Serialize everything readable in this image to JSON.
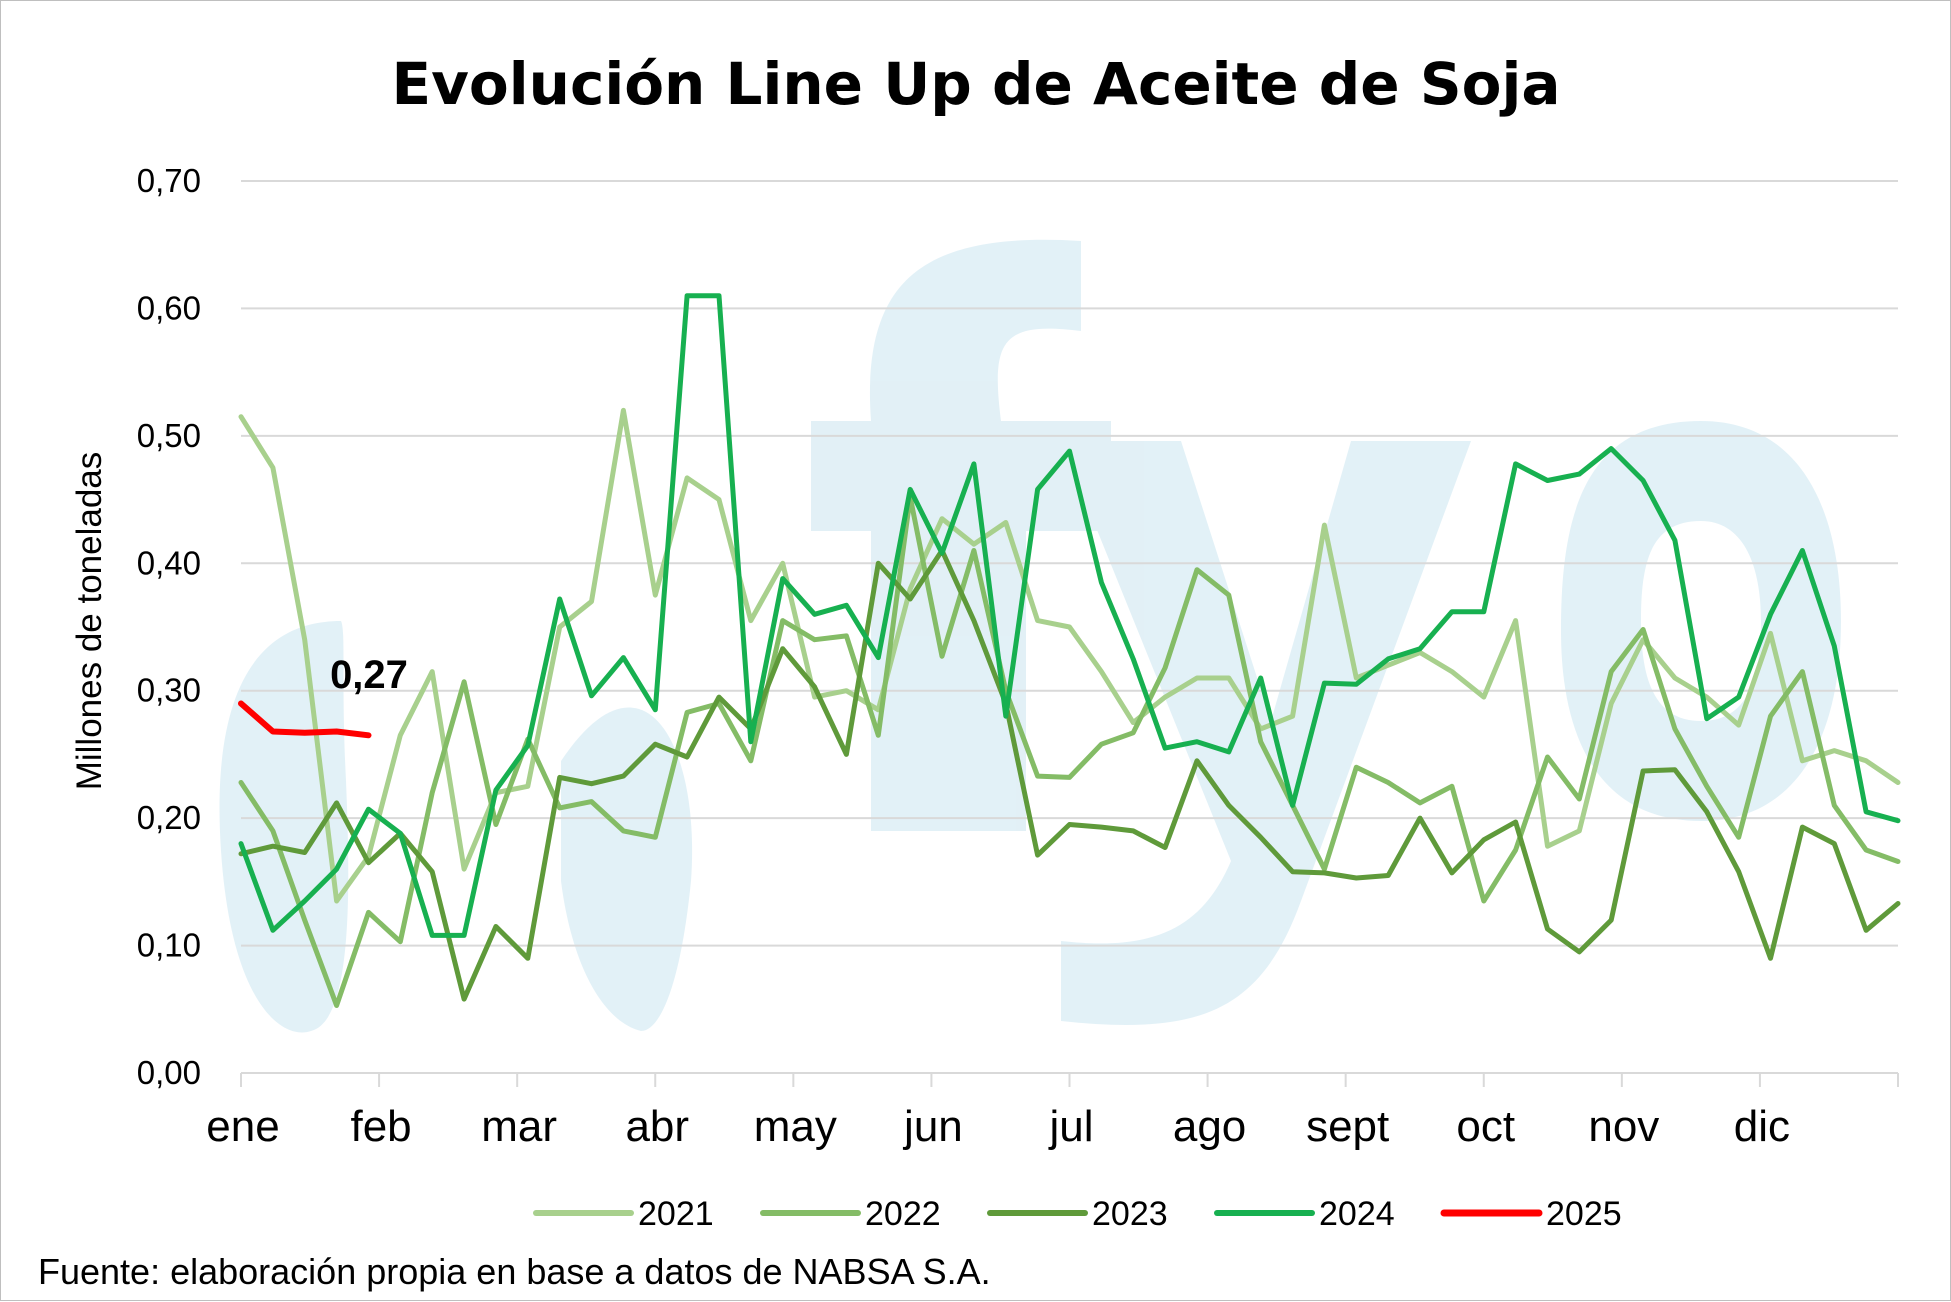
{
  "chart_data": {
    "type": "line",
    "title": "Evolución Line Up de Aceite de Soja",
    "ylabel": "Millones de toneladas",
    "xlabel": "",
    "ylim": [
      0,
      0.7
    ],
    "yticks": [
      "0,00",
      "0,10",
      "0,20",
      "0,30",
      "0,40",
      "0,50",
      "0,60",
      "0,70"
    ],
    "x_axis_months": [
      "ene",
      "feb",
      "mar",
      "abr",
      "may",
      "jun",
      "jul",
      "ago",
      "sept",
      "oct",
      "nov",
      "dic"
    ],
    "grid": true,
    "legend_position": "bottom",
    "annotation": {
      "text": "0,27",
      "series": "2025"
    },
    "source": "Fuente: elaboración propia en base a datos de NABSA S.A.",
    "watermark": "fyo",
    "series": [
      {
        "name": "2021",
        "color": "#a8d08d",
        "values": [
          0.515,
          0.475,
          0.34,
          0.135,
          0.17,
          0.265,
          0.315,
          0.16,
          0.22,
          0.225,
          0.35,
          0.37,
          0.52,
          0.375,
          0.467,
          0.45,
          0.355,
          0.4,
          0.295,
          0.3,
          0.285,
          0.38,
          0.435,
          0.415,
          0.432,
          0.355,
          0.35,
          0.315,
          0.275,
          0.295,
          0.31,
          0.31,
          0.27,
          0.28,
          0.43,
          0.31,
          0.32,
          0.33,
          0.315,
          0.295,
          0.355,
          0.178,
          0.19,
          0.29,
          0.34,
          0.31,
          0.295,
          0.273,
          0.345,
          0.245,
          0.253,
          0.245,
          0.228
        ]
      },
      {
        "name": "2022",
        "color": "#84bc66",
        "values": [
          0.228,
          0.19,
          0.12,
          0.053,
          0.126,
          0.103,
          0.22,
          0.307,
          0.195,
          0.262,
          0.208,
          0.213,
          0.19,
          0.185,
          0.283,
          0.29,
          0.245,
          0.355,
          0.34,
          0.343,
          0.265,
          0.452,
          0.327,
          0.41,
          0.3,
          0.233,
          0.232,
          0.258,
          0.267,
          0.318,
          0.395,
          0.375,
          0.26,
          0.21,
          0.16,
          0.24,
          0.228,
          0.212,
          0.225,
          0.135,
          0.175,
          0.248,
          0.215,
          0.315,
          0.348,
          0.27,
          0.225,
          0.185,
          0.28,
          0.315,
          0.21,
          0.175,
          0.166
        ]
      },
      {
        "name": "2023",
        "color": "#5f9a3a",
        "values": [
          0.172,
          0.178,
          0.173,
          0.212,
          0.165,
          0.188,
          0.158,
          0.058,
          0.115,
          0.09,
          0.232,
          0.227,
          0.233,
          0.258,
          0.248,
          0.295,
          0.27,
          0.333,
          0.303,
          0.25,
          0.4,
          0.372,
          0.41,
          0.355,
          0.29,
          0.171,
          0.195,
          0.193,
          0.19,
          0.177,
          0.245,
          0.21,
          0.185,
          0.158,
          0.157,
          0.153,
          0.155,
          0.2,
          0.157,
          0.183,
          0.197,
          0.113,
          0.095,
          0.12,
          0.237,
          0.238,
          0.205,
          0.158,
          0.09,
          0.193,
          0.18,
          0.112,
          0.133
        ]
      },
      {
        "name": "2024",
        "color": "#17b050",
        "values": [
          0.18,
          0.112,
          0.135,
          0.16,
          0.207,
          0.188,
          0.108,
          0.108,
          0.222,
          0.257,
          0.372,
          0.296,
          0.326,
          0.285,
          0.61,
          0.61,
          0.26,
          0.388,
          0.36,
          0.367,
          0.326,
          0.458,
          0.408,
          0.478,
          0.28,
          0.458,
          0.488,
          0.385,
          0.325,
          0.255,
          0.26,
          0.252,
          0.31,
          0.21,
          0.306,
          0.305,
          0.325,
          0.333,
          0.362,
          0.362,
          0.478,
          0.465,
          0.47,
          0.49,
          0.465,
          0.418,
          0.278,
          0.295,
          0.36,
          0.41,
          0.335,
          0.205,
          0.198
        ]
      },
      {
        "name": "2025",
        "color": "#ff0000",
        "values": [
          0.29,
          0.268,
          0.267,
          0.268,
          0.265
        ]
      }
    ]
  }
}
